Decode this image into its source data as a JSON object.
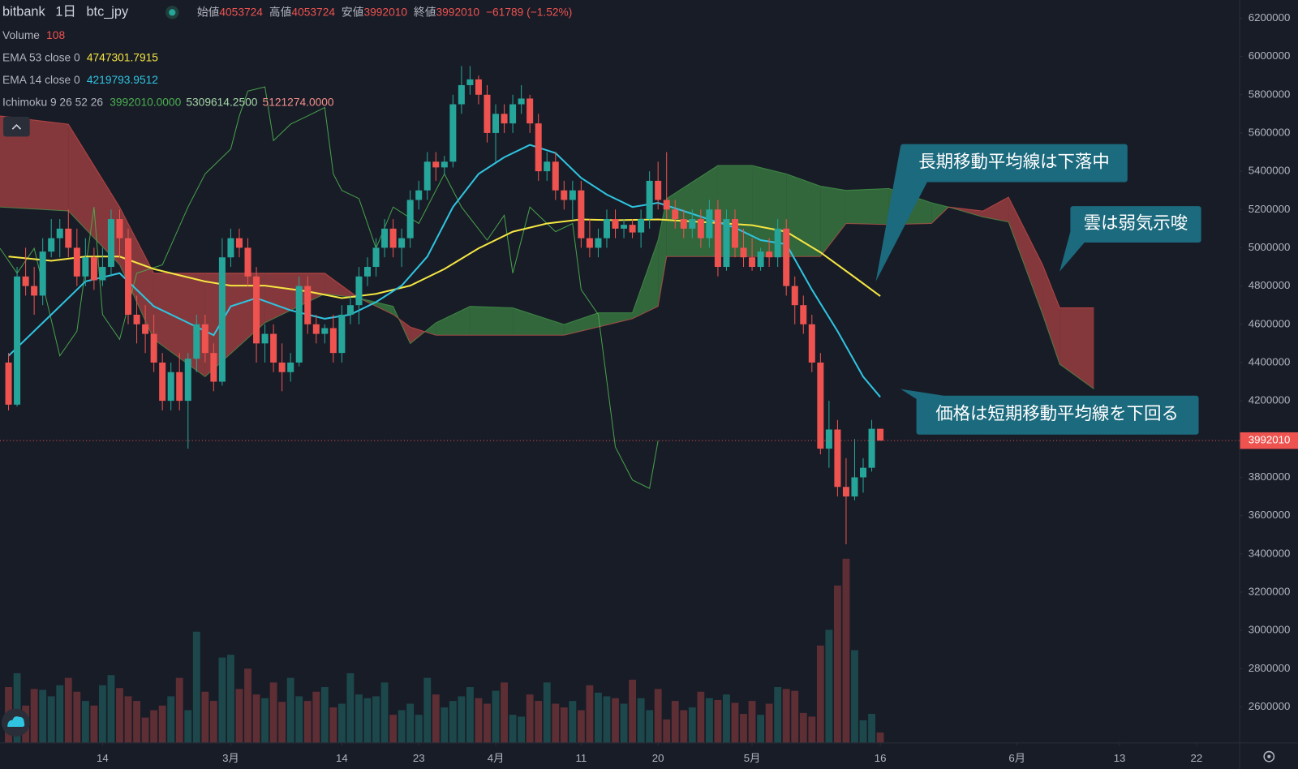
{
  "header": {
    "exchange": "bitbank",
    "interval": "1日",
    "symbol": "btc_jpy",
    "ohlc": [
      {
        "label": "始値",
        "value": 4053724
      },
      {
        "label": "高値",
        "value": 4053724
      },
      {
        "label": "安値",
        "value": 3992010
      },
      {
        "label": "終値",
        "value": 3992010
      }
    ],
    "change": "−61789 (−1.52%)"
  },
  "chart_data": {
    "type": "candlestick",
    "up_color": "#26a69a",
    "down_color": "#ef5350",
    "xlim": [
      "02-02",
      "06-27"
    ],
    "xticks": [
      {
        "value": "02-14",
        "label": "14"
      },
      {
        "value": "03-01",
        "label": "3月"
      },
      {
        "value": "03-14",
        "label": "14"
      },
      {
        "value": "03-23",
        "label": "23"
      },
      {
        "value": "04-01",
        "label": "4月"
      },
      {
        "value": "04-11",
        "label": "11"
      },
      {
        "value": "04-20",
        "label": "20"
      },
      {
        "value": "05-01",
        "label": "5月"
      },
      {
        "value": "05-16",
        "label": "16"
      },
      {
        "value": "06-01",
        "label": "6月"
      },
      {
        "value": "06-13",
        "label": "13"
      },
      {
        "value": "06-22",
        "label": "22"
      }
    ],
    "ylim": [
      2414000,
      6295000
    ],
    "yticks": [
      2600000,
      2800000,
      3000000,
      3200000,
      3400000,
      3600000,
      3800000,
      4000000,
      4200000,
      4400000,
      4600000,
      4800000,
      5000000,
      5200000,
      5400000,
      5600000,
      5800000,
      6000000,
      6200000
    ],
    "x": [
      "02-03",
      "02-04",
      "02-05",
      "02-06",
      "02-07",
      "02-08",
      "02-09",
      "02-10",
      "02-11",
      "02-12",
      "02-13",
      "02-14",
      "02-15",
      "02-16",
      "02-17",
      "02-18",
      "02-19",
      "02-20",
      "02-21",
      "02-22",
      "02-23",
      "02-24",
      "02-25",
      "02-26",
      "02-27",
      "02-28",
      "03-01",
      "03-02",
      "03-03",
      "03-04",
      "03-05",
      "03-06",
      "03-07",
      "03-08",
      "03-09",
      "03-10",
      "03-11",
      "03-12",
      "03-13",
      "03-14",
      "03-15",
      "03-16",
      "03-17",
      "03-18",
      "03-19",
      "03-20",
      "03-21",
      "03-22",
      "03-23",
      "03-24",
      "03-25",
      "03-26",
      "03-27",
      "03-28",
      "03-29",
      "03-30",
      "03-31",
      "04-01",
      "04-02",
      "04-03",
      "04-04",
      "04-05",
      "04-06",
      "04-07",
      "04-08",
      "04-09",
      "04-10",
      "04-11",
      "04-12",
      "04-13",
      "04-14",
      "04-15",
      "04-16",
      "04-17",
      "04-18",
      "04-19",
      "04-20",
      "04-21",
      "04-22",
      "04-23",
      "04-24",
      "04-25",
      "04-26",
      "04-27",
      "04-28",
      "04-29",
      "04-30",
      "05-01",
      "05-02",
      "05-03",
      "05-04",
      "05-05",
      "05-06",
      "05-07",
      "05-08",
      "05-09",
      "05-10",
      "05-11",
      "05-12",
      "05-13",
      "05-14",
      "05-15",
      "05-16"
    ],
    "ohlc": [
      [
        4400000,
        4450000,
        4150000,
        4180000
      ],
      [
        4180000,
        4900000,
        4170000,
        4850000
      ],
      [
        4850000,
        5000000,
        4750000,
        4800000
      ],
      [
        4800000,
        4900000,
        4650000,
        4750000
      ],
      [
        4750000,
        5050000,
        4700000,
        4980000
      ],
      [
        4980000,
        5150000,
        4950000,
        5050000
      ],
      [
        5050000,
        5150000,
        4950000,
        5100000
      ],
      [
        5100000,
        5200000,
        4950000,
        5000000
      ],
      [
        5000000,
        5100000,
        4800000,
        4850000
      ],
      [
        4850000,
        5050000,
        4800000,
        4950000
      ],
      [
        4950000,
        5000000,
        4780000,
        4830000
      ],
      [
        4830000,
        5000000,
        4800000,
        4900000
      ],
      [
        4900000,
        5200000,
        4850000,
        5150000
      ],
      [
        5150000,
        5200000,
        4950000,
        5050000
      ],
      [
        5050000,
        5100000,
        4600000,
        4650000
      ],
      [
        4650000,
        4750000,
        4500000,
        4600000
      ],
      [
        4600000,
        4700000,
        4450000,
        4550000
      ],
      [
        4550000,
        4650000,
        4350000,
        4400000
      ],
      [
        4400000,
        4450000,
        4150000,
        4200000
      ],
      [
        4200000,
        4400000,
        4150000,
        4350000
      ],
      [
        4350000,
        4450000,
        4150000,
        4200000
      ],
      [
        4200000,
        4450000,
        3950000,
        4420000
      ],
      [
        4420000,
        4650000,
        4350000,
        4600000
      ],
      [
        4600000,
        4650000,
        4400000,
        4450000
      ],
      [
        4450000,
        4500000,
        4250000,
        4300000
      ],
      [
        4300000,
        5050000,
        4280000,
        4950000
      ],
      [
        4950000,
        5100000,
        4900000,
        5050000
      ],
      [
        5050000,
        5100000,
        4950000,
        5000000
      ],
      [
        5000000,
        5050000,
        4800000,
        4850000
      ],
      [
        4850000,
        4900000,
        4400000,
        4500000
      ],
      [
        4500000,
        4600000,
        4400000,
        4550000
      ],
      [
        4550000,
        4600000,
        4350000,
        4400000
      ],
      [
        4400000,
        4500000,
        4250000,
        4350000
      ],
      [
        4350000,
        4450000,
        4300000,
        4400000
      ],
      [
        4400000,
        4850000,
        4380000,
        4800000
      ],
      [
        4800000,
        4850000,
        4550000,
        4600000
      ],
      [
        4600000,
        4650000,
        4500000,
        4550000
      ],
      [
        4550000,
        4600000,
        4500000,
        4580000
      ],
      [
        4580000,
        4650000,
        4400000,
        4450000
      ],
      [
        4450000,
        4700000,
        4400000,
        4650000
      ],
      [
        4650000,
        4750000,
        4600000,
        4700000
      ],
      [
        4700000,
        4900000,
        4600000,
        4850000
      ],
      [
        4850000,
        4950000,
        4800000,
        4900000
      ],
      [
        4900000,
        5050000,
        4850000,
        5000000
      ],
      [
        5000000,
        5150000,
        4950000,
        5100000
      ],
      [
        5100000,
        5150000,
        4950000,
        5000000
      ],
      [
        5000000,
        5100000,
        4900000,
        5050000
      ],
      [
        5050000,
        5300000,
        5000000,
        5250000
      ],
      [
        5250000,
        5350000,
        5200000,
        5300000
      ],
      [
        5300000,
        5500000,
        5250000,
        5450000
      ],
      [
        5450000,
        5500000,
        5350000,
        5420000
      ],
      [
        5420000,
        5480000,
        5380000,
        5450000
      ],
      [
        5450000,
        5800000,
        5420000,
        5750000
      ],
      [
        5750000,
        5950000,
        5700000,
        5850000
      ],
      [
        5850000,
        5950000,
        5800000,
        5880000
      ],
      [
        5880000,
        5900000,
        5750000,
        5800000
      ],
      [
        5800000,
        5850000,
        5550000,
        5600000
      ],
      [
        5600000,
        5750000,
        5450000,
        5700000
      ],
      [
        5700000,
        5750000,
        5600000,
        5650000
      ],
      [
        5650000,
        5800000,
        5600000,
        5750000
      ],
      [
        5750000,
        5850000,
        5700000,
        5780000
      ],
      [
        5780000,
        5800000,
        5600000,
        5650000
      ],
      [
        5650000,
        5700000,
        5350000,
        5400000
      ],
      [
        5400000,
        5500000,
        5350000,
        5450000
      ],
      [
        5450000,
        5500000,
        5250000,
        5300000
      ],
      [
        5300000,
        5350000,
        5200000,
        5250000
      ],
      [
        5250000,
        5350000,
        5150000,
        5300000
      ],
      [
        5300000,
        5350000,
        5000000,
        5050000
      ],
      [
        5050000,
        5150000,
        4950000,
        5000000
      ],
      [
        5000000,
        5100000,
        4950000,
        5050000
      ],
      [
        5050000,
        5200000,
        5000000,
        5150000
      ],
      [
        5150000,
        5200000,
        5050000,
        5100000
      ],
      [
        5100000,
        5150000,
        5050000,
        5120000
      ],
      [
        5120000,
        5150000,
        5050000,
        5080000
      ],
      [
        5080000,
        5200000,
        5000000,
        5150000
      ],
      [
        5150000,
        5400000,
        5100000,
        5350000
      ],
      [
        5350000,
        5450000,
        5200000,
        5250000
      ],
      [
        5250000,
        5500000,
        5150000,
        5200000
      ],
      [
        5200000,
        5250000,
        5100000,
        5150000
      ],
      [
        5150000,
        5200000,
        5050000,
        5100000
      ],
      [
        5100000,
        5200000,
        5050000,
        5150000
      ],
      [
        5150000,
        5200000,
        5000000,
        5050000
      ],
      [
        5050000,
        5250000,
        5000000,
        5200000
      ],
      [
        5200000,
        5250000,
        4850000,
        4900000
      ],
      [
        4900000,
        5200000,
        4880000,
        5150000
      ],
      [
        5150000,
        5200000,
        4950000,
        5000000
      ],
      [
        5000000,
        5100000,
        4900000,
        4950000
      ],
      [
        4950000,
        5050000,
        4880000,
        4900000
      ],
      [
        4900000,
        5000000,
        4880000,
        4980000
      ],
      [
        4980000,
        5050000,
        4900000,
        4950000
      ],
      [
        4950000,
        5150000,
        4900000,
        5100000
      ],
      [
        5100000,
        5150000,
        4750000,
        4800000
      ],
      [
        4800000,
        4850000,
        4600000,
        4700000
      ],
      [
        4700000,
        4750000,
        4550000,
        4600000
      ],
      [
        4600000,
        4650000,
        4350000,
        4400000
      ],
      [
        4400000,
        4450000,
        3920000,
        3950000
      ],
      [
        3950000,
        4200000,
        3850000,
        4050000
      ],
      [
        4050000,
        4100000,
        3700000,
        3750000
      ],
      [
        3750000,
        3900000,
        3450000,
        3700000
      ],
      [
        3700000,
        4000000,
        3680000,
        3800000
      ],
      [
        3800000,
        3900000,
        3720000,
        3850000
      ],
      [
        3850000,
        4100000,
        3830000,
        4053724
      ],
      [
        4053724,
        4053724,
        3992010,
        3992010
      ]
    ],
    "volume": {
      "name": "Volume",
      "values": [
        600,
        750,
        400,
        580,
        570,
        500,
        620,
        700,
        550,
        450,
        400,
        620,
        730,
        590,
        500,
        450,
        270,
        350,
        400,
        500,
        700,
        350,
        1200,
        550,
        450,
        920,
        950,
        580,
        800,
        520,
        480,
        650,
        440,
        700,
        500,
        450,
        550,
        600,
        380,
        420,
        750,
        520,
        480,
        500,
        650,
        300,
        350,
        420,
        300,
        700,
        520,
        380,
        450,
        500,
        600,
        480,
        420,
        560,
        650,
        300,
        280,
        520,
        450,
        650,
        420,
        380,
        450,
        350,
        620,
        540,
        500,
        480,
        420,
        680,
        480,
        350,
        580,
        250,
        450,
        350,
        380,
        550,
        480,
        460,
        520,
        430,
        310,
        450,
        300,
        420,
        600,
        580,
        560,
        320,
        280,
        1050,
        1220,
        1700,
        1990,
        1000,
        240,
        310,
        108
      ]
    },
    "lines": [
      {
        "name": "EMA 53 close 0",
        "color": "#f5e642",
        "x": [
          "02-03",
          "02-08",
          "02-12",
          "02-16",
          "02-20",
          "02-26",
          "03-01",
          "03-05",
          "03-10",
          "03-14",
          "03-18",
          "03-22",
          "03-26",
          "03-30",
          "04-03",
          "04-07",
          "04-11",
          "04-15",
          "04-20",
          "04-25",
          "05-01",
          "05-05",
          "05-09",
          "05-13",
          "05-16"
        ],
        "values": [
          4954000,
          4932000,
          4954000,
          4954000,
          4889000,
          4824000,
          4802000,
          4802000,
          4772000,
          4737000,
          4759000,
          4802000,
          4889000,
          4997000,
          5084000,
          5127000,
          5148000,
          5144000,
          5148000,
          5135000,
          5118000,
          5084000,
          4976000,
          4846000,
          4747301.7915
        ]
      },
      {
        "name": "EMA 14 close 0",
        "color": "#2fc4e0",
        "x": [
          "02-03",
          "02-08",
          "02-12",
          "02-16",
          "02-20",
          "02-24",
          "02-27",
          "03-01",
          "03-04",
          "03-08",
          "03-12",
          "03-15",
          "03-18",
          "03-21",
          "03-24",
          "03-27",
          "03-30",
          "04-02",
          "04-05",
          "04-08",
          "04-11",
          "04-14",
          "04-17",
          "04-20",
          "04-23",
          "04-26",
          "04-29",
          "05-02",
          "05-05",
          "05-08",
          "05-11",
          "05-14",
          "05-16"
        ],
        "values": [
          4435000,
          4651000,
          4824000,
          4867000,
          4694000,
          4608000,
          4543000,
          4694000,
          4737000,
          4673000,
          4629000,
          4651000,
          4716000,
          4802000,
          4954000,
          5213000,
          5386000,
          5473000,
          5538000,
          5495000,
          5365000,
          5278000,
          5213000,
          5235000,
          5192000,
          5148000,
          5105000,
          5040000,
          5019000,
          4781000,
          4564000,
          4326000,
          4219793.9512
        ]
      }
    ],
    "ichimoku": {
      "name": "Ichimoku 9 26 52 26",
      "legend_values": [
        "3992010.0000",
        "5309614.2500",
        "5121274.0000"
      ],
      "legend_colors": [
        "#4caf50",
        "#a5d6a7",
        "#f48f8a"
      ],
      "lagging": {
        "color": "#4caf50",
        "x": [
          "02-02",
          "02-04",
          "02-06",
          "02-09",
          "02-11",
          "02-13",
          "02-14",
          "02-16",
          "02-18",
          "02-21",
          "02-24",
          "02-26",
          "03-01",
          "03-02",
          "03-03",
          "03-05",
          "03-06",
          "03-08",
          "03-10",
          "03-12",
          "03-13",
          "03-14",
          "03-16",
          "03-18",
          "03-20",
          "03-23",
          "03-26",
          "03-28",
          "03-31",
          "04-02",
          "04-03",
          "04-05",
          "04-08",
          "04-10",
          "04-11",
          "04-13",
          "04-15",
          "04-17",
          "04-19",
          "04-20"
        ],
        "values": [
          4997000,
          4867000,
          4997000,
          4435000,
          4564000,
          5213000,
          4651000,
          4521000,
          4867000,
          4911000,
          5213000,
          5386000,
          5516000,
          5689000,
          5819000,
          5841000,
          5560000,
          5646000,
          5689000,
          5733000,
          5386000,
          5300000,
          5257000,
          4997000,
          5213000,
          5127000,
          5386000,
          5213000,
          5040000,
          5170000,
          4867000,
          5213000,
          5084000,
          5127000,
          4781000,
          4651000,
          3959000,
          3786000,
          3742000,
          3992010
        ]
      },
      "cloud": {
        "up_color": "#4caf50",
        "down_color": "#ef5350",
        "x": [
          "02-02",
          "02-10",
          "02-16",
          "02-20",
          "02-26",
          "03-05",
          "03-12",
          "03-16",
          "03-20",
          "03-22",
          "03-25",
          "03-29",
          "04-03",
          "04-09",
          "04-13",
          "04-17",
          "04-20",
          "04-21",
          "04-27",
          "05-01",
          "05-05",
          "05-09",
          "05-12",
          "05-17",
          "05-22",
          "05-24",
          "05-28",
          "05-31",
          "06-04",
          "06-06",
          "06-10"
        ],
        "span_a": [
          5213000,
          5192000,
          4911000,
          4521000,
          4326000,
          4608000,
          4759000,
          4737000,
          4694000,
          4499000,
          4608000,
          4694000,
          4686000,
          4599000,
          4660000,
          4660000,
          5040000,
          5257000,
          5430000,
          5430000,
          5386000,
          5322000,
          5300000,
          5309614,
          5235000,
          5213000,
          5161000,
          5135000,
          4651000,
          4391000,
          4262000
        ],
        "span_b": [
          5689000,
          5646000,
          5213000,
          4867000,
          4867000,
          4867000,
          4867000,
          4737000,
          4651000,
          4586000,
          4543000,
          4543000,
          4543000,
          4543000,
          4586000,
          4629000,
          4694000,
          4954000,
          4954000,
          4954000,
          4954000,
          4954000,
          5127000,
          5121274,
          5127000,
          5213000,
          5192000,
          5265000,
          4911000,
          4686000,
          4686000
        ]
      }
    },
    "annotations": [
      "長期移動平均線は下落中",
      "雲は弱気示唆",
      "価格は短期移動平均線を下回る"
    ]
  }
}
